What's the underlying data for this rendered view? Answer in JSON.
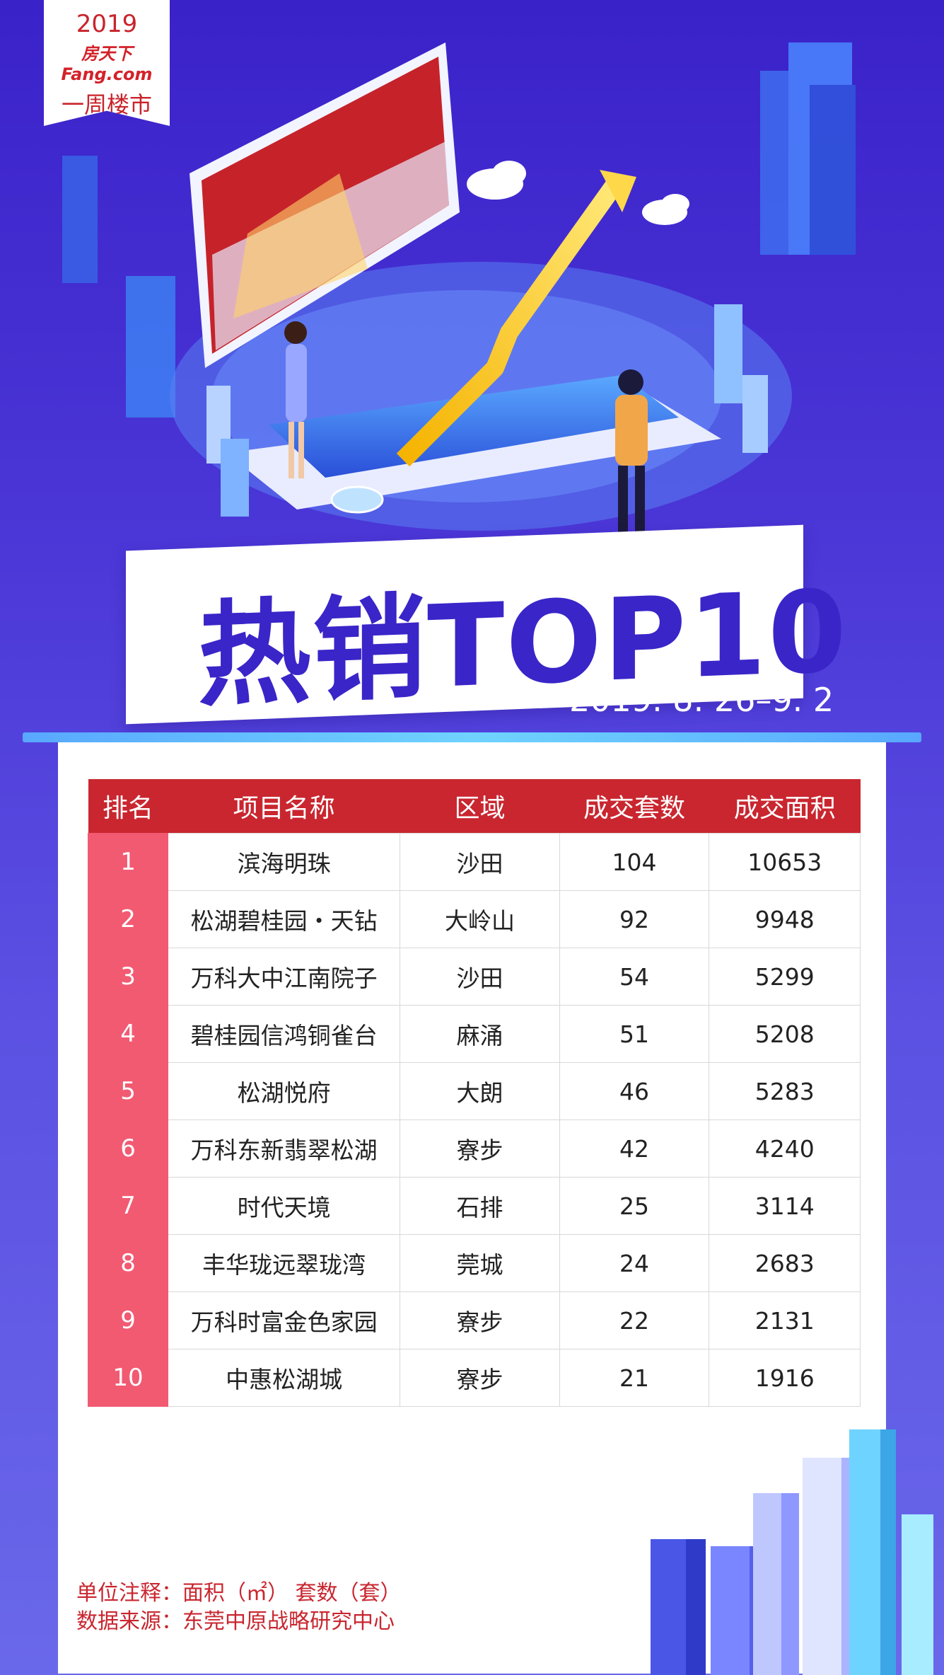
{
  "header": {
    "year": "2019",
    "brand": "房天下Fang.com",
    "column": "一周楼市"
  },
  "banner": {
    "title": "热销TOP10",
    "date_range": "2019. 8. 26–9. 2"
  },
  "colors": {
    "background_top": "#3a22c9",
    "table_header": "#c9262f",
    "rank_cell": "#f25a72",
    "accent_bar": "#6fd3ff"
  },
  "chart_data": {
    "type": "table",
    "columns": [
      "排名",
      "项目名称",
      "区域",
      "成交套数",
      "成交面积"
    ],
    "rows": [
      {
        "rank": "1",
        "name": "滨海明珠",
        "area": "沙田",
        "units": 104,
        "size": 10653
      },
      {
        "rank": "2",
        "name": "松湖碧桂园・天钻",
        "area": "大岭山",
        "units": 92,
        "size": 9948
      },
      {
        "rank": "3",
        "name": "万科大中江南院子",
        "area": "沙田",
        "units": 54,
        "size": 5299
      },
      {
        "rank": "4",
        "name": "碧桂园信鸿铜雀台",
        "area": "麻涌",
        "units": 51,
        "size": 5208
      },
      {
        "rank": "5",
        "name": "松湖悦府",
        "area": "大朗",
        "units": 46,
        "size": 5283
      },
      {
        "rank": "6",
        "name": "万科东新翡翠松湖",
        "area": "寮步",
        "units": 42,
        "size": 4240
      },
      {
        "rank": "7",
        "name": "时代天境",
        "area": "石排",
        "units": 25,
        "size": 3114
      },
      {
        "rank": "8",
        "name": "丰华珑远翠珑湾",
        "area": "莞城",
        "units": 24,
        "size": 2683
      },
      {
        "rank": "9",
        "name": "万科时富金色家园",
        "area": "寮步",
        "units": 22,
        "size": 2131
      },
      {
        "rank": "10",
        "name": "中惠松湖城",
        "area": "寮步",
        "units": 21,
        "size": 1916
      }
    ]
  },
  "footer": {
    "unit_note": "单位注释：面积（㎡） 套数（套）",
    "source_note": "数据来源：东莞中原战略研究中心"
  }
}
